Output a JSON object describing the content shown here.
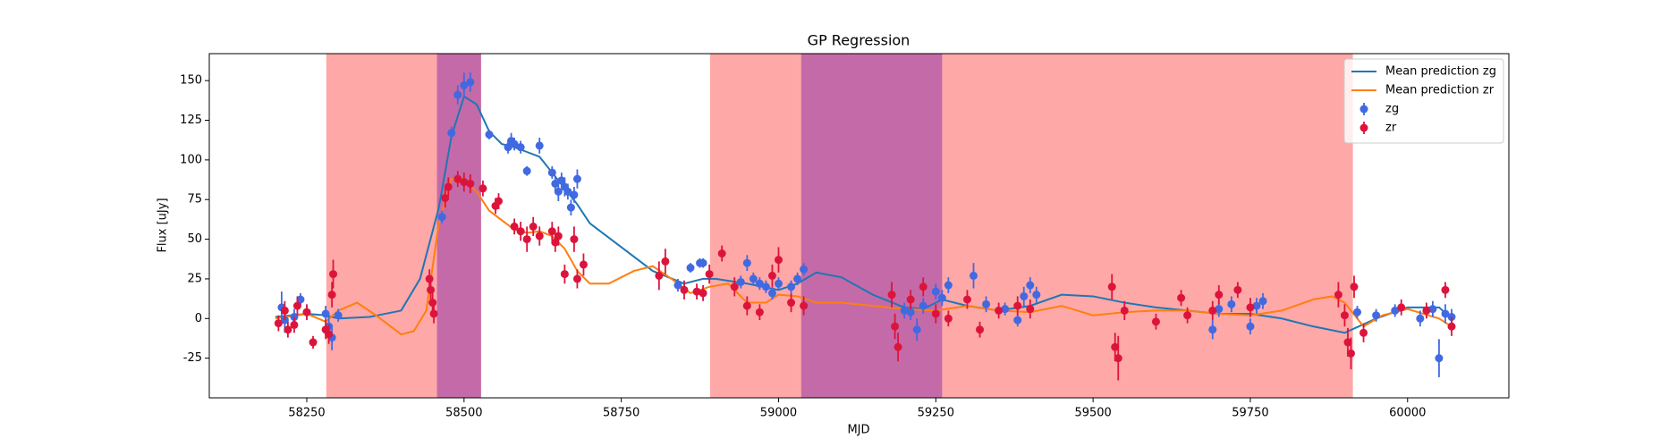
{
  "chart_data": {
    "type": "scatter",
    "title": "GP Regression",
    "x_label": "MJD",
    "y_label": "Flux [uJy]",
    "xlim": [
      58095,
      60161
    ],
    "ylim": [
      -50,
      167
    ],
    "xticks": [
      58250,
      58500,
      58750,
      59000,
      59250,
      59500,
      59750,
      60000
    ],
    "yticks": [
      -25,
      0,
      25,
      50,
      75,
      100,
      125,
      150
    ],
    "legend": "upper right",
    "spans": [
      {
        "x": [
          58281,
          58527
        ],
        "color": "#ffa8a8"
      },
      {
        "x": [
          58891,
          59913
        ],
        "color": "#ffa8a8"
      },
      {
        "x": [
          58457,
          58527
        ],
        "color": "#c46aa8"
      },
      {
        "x": [
          59036,
          59260
        ],
        "color": "#c46aa8"
      }
    ],
    "lines": [
      {
        "name": "Mean prediction zg",
        "color": "#1f77b4",
        "x": [
          58200,
          58250,
          58280,
          58300,
          58350,
          58400,
          58430,
          58460,
          58480,
          58500,
          58520,
          58540,
          58560,
          58580,
          58600,
          58620,
          58640,
          58660,
          58680,
          58700,
          58750,
          58800,
          58850,
          58880,
          58900,
          58950,
          59000,
          59030,
          59060,
          59100,
          59150,
          59200,
          59230,
          59260,
          59300,
          59350,
          59400,
          59450,
          59500,
          59550,
          59600,
          59650,
          59700,
          59750,
          59800,
          59850,
          59900,
          59950,
          60000,
          60050,
          60070
        ],
        "values": [
          1,
          3,
          2,
          0,
          1,
          5,
          25,
          70,
          115,
          140,
          135,
          118,
          110,
          108,
          105,
          102,
          92,
          82,
          72,
          60,
          45,
          30,
          22,
          25,
          25,
          22,
          18,
          22,
          29,
          26,
          15,
          7,
          6,
          12,
          8,
          5,
          8,
          15,
          14,
          10,
          7,
          5,
          3,
          3,
          0,
          -5,
          -9,
          0,
          7,
          7,
          0
        ]
      },
      {
        "name": "Mean prediction zr",
        "color": "#ff7f0e",
        "x": [
          58200,
          58250,
          58280,
          58300,
          58330,
          58360,
          58400,
          58420,
          58440,
          58460,
          58480,
          58500,
          58520,
          58540,
          58560,
          58580,
          58600,
          58620,
          58640,
          58660,
          58680,
          58700,
          58730,
          58770,
          58800,
          58830,
          58860,
          58890,
          58920,
          58950,
          58980,
          59000,
          59030,
          59060,
          59100,
          59150,
          59200,
          59250,
          59300,
          59350,
          59400,
          59450,
          59500,
          59550,
          59600,
          59650,
          59700,
          59750,
          59800,
          59850,
          59880,
          59900,
          59930,
          59960,
          60000,
          60050,
          60070
        ],
        "values": [
          0,
          3,
          -2,
          5,
          10,
          2,
          -10,
          -8,
          5,
          60,
          88,
          88,
          80,
          68,
          62,
          56,
          54,
          55,
          52,
          44,
          30,
          22,
          22,
          30,
          33,
          25,
          16,
          20,
          22,
          10,
          10,
          15,
          14,
          10,
          10,
          8,
          6,
          5,
          8,
          5,
          4,
          8,
          2,
          4,
          5,
          5,
          3,
          2,
          5,
          12,
          14,
          10,
          -5,
          2,
          6,
          0,
          -5
        ]
      }
    ],
    "series": [
      {
        "name": "zg",
        "color": "#4169e1",
        "x": [
          58210,
          58215,
          58230,
          58240,
          58250,
          58280,
          58285,
          58290,
          58300,
          58465,
          58480,
          58490,
          58500,
          58510,
          58540,
          58570,
          58575,
          58580,
          58590,
          58600,
          58620,
          58640,
          58645,
          58650,
          58655,
          58660,
          58665,
          58670,
          58675,
          58680,
          58840,
          58860,
          58875,
          58880,
          58940,
          58950,
          58960,
          58970,
          58980,
          58990,
          59000,
          59020,
          59030,
          59040,
          59200,
          59210,
          59220,
          59230,
          59250,
          59260,
          59270,
          59310,
          59330,
          59360,
          59380,
          59390,
          59400,
          59410,
          59690,
          59700,
          59720,
          59750,
          59760,
          59770,
          59920,
          59950,
          59980,
          60020,
          60040,
          60050,
          60060,
          60070
        ],
        "values": [
          7,
          -1,
          1,
          12,
          4,
          3,
          -5,
          -12,
          2,
          64,
          117,
          141,
          147,
          149,
          116,
          108,
          112,
          110,
          108,
          93,
          109,
          92,
          85,
          80,
          87,
          83,
          80,
          70,
          78,
          88,
          21,
          32,
          35,
          35,
          23,
          35,
          25,
          22,
          20,
          16,
          22,
          20,
          25,
          31,
          5,
          4,
          -7,
          8,
          17,
          13,
          21,
          27,
          9,
          6,
          -1,
          14,
          21,
          15,
          -7,
          6,
          9,
          -5,
          8,
          11,
          4,
          2,
          5,
          0,
          6,
          -25,
          3,
          1
        ],
        "errors": [
          10,
          8,
          5,
          4,
          4,
          5,
          6,
          8,
          4,
          4,
          4,
          6,
          8,
          6,
          3,
          4,
          5,
          4,
          4,
          3,
          5,
          4,
          5,
          6,
          5,
          6,
          5,
          5,
          5,
          6,
          4,
          3,
          3,
          3,
          4,
          5,
          4,
          4,
          4,
          4,
          4,
          4,
          4,
          4,
          5,
          5,
          7,
          5,
          5,
          5,
          5,
          8,
          5,
          4,
          4,
          6,
          5,
          5,
          6,
          5,
          5,
          5,
          5,
          5,
          4,
          4,
          4,
          5,
          5,
          12,
          6,
          5
        ]
      },
      {
        "name": "zr",
        "color": "#dc143c",
        "x": [
          58205,
          58215,
          58220,
          58230,
          58235,
          58250,
          58260,
          58280,
          58285,
          58290,
          58292,
          58445,
          58447,
          58450,
          58452,
          58470,
          58475,
          58490,
          58500,
          58510,
          58530,
          58550,
          58555,
          58580,
          58590,
          58600,
          58610,
          58620,
          58640,
          58645,
          58650,
          58660,
          58675,
          58680,
          58690,
          58810,
          58820,
          58850,
          58870,
          58880,
          58890,
          58910,
          58930,
          58950,
          58970,
          58990,
          59000,
          59020,
          59040,
          59180,
          59185,
          59190,
          59210,
          59230,
          59250,
          59270,
          59300,
          59320,
          59350,
          59380,
          59400,
          59530,
          59535,
          59540,
          59550,
          59600,
          59640,
          59650,
          59690,
          59700,
          59730,
          59750,
          59890,
          59900,
          59905,
          59910,
          59915,
          59930,
          59990,
          60030,
          60060,
          60070
        ],
        "values": [
          -3,
          5,
          -7,
          -4,
          8,
          4,
          -15,
          -7,
          -10,
          15,
          28,
          25,
          18,
          10,
          3,
          76,
          83,
          88,
          86,
          85,
          82,
          71,
          74,
          58,
          55,
          50,
          58,
          52,
          55,
          48,
          52,
          28,
          50,
          25,
          34,
          27,
          36,
          18,
          17,
          16,
          28,
          41,
          20,
          8,
          4,
          27,
          37,
          10,
          8,
          15,
          -5,
          -18,
          12,
          20,
          3,
          0,
          12,
          -7,
          5,
          8,
          6,
          20,
          -18,
          -25,
          5,
          -2,
          13,
          2,
          5,
          15,
          18,
          7,
          15,
          2,
          -15,
          -22,
          20,
          -9,
          7,
          5,
          18,
          -5
        ],
        "errors": [
          5,
          6,
          5,
          5,
          6,
          5,
          4,
          6,
          6,
          8,
          9,
          6,
          6,
          6,
          6,
          6,
          6,
          5,
          6,
          6,
          5,
          5,
          5,
          5,
          6,
          8,
          6,
          6,
          6,
          6,
          6,
          6,
          8,
          6,
          7,
          9,
          8,
          6,
          5,
          5,
          6,
          5,
          6,
          6,
          5,
          7,
          8,
          6,
          6,
          8,
          8,
          9,
          6,
          6,
          6,
          5,
          6,
          5,
          5,
          6,
          6,
          8,
          9,
          14,
          6,
          5,
          5,
          5,
          6,
          6,
          5,
          6,
          8,
          7,
          9,
          10,
          7,
          6,
          5,
          5,
          5,
          6
        ]
      }
    ]
  }
}
